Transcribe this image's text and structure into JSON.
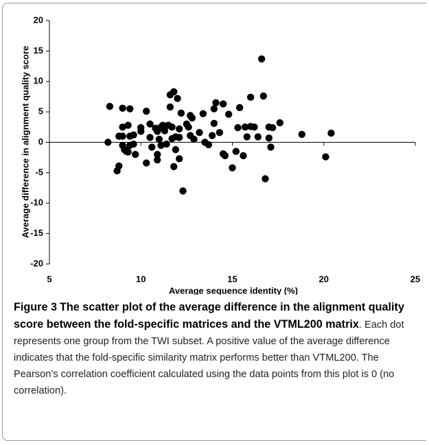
{
  "chart_data": {
    "type": "scatter",
    "xlabel": "Average sequence identity (%)",
    "ylabel": "Average difference in alignment quality score",
    "color": "#000000",
    "xlim": [
      5,
      25
    ],
    "xticks": [
      5,
      10,
      15,
      20,
      25
    ],
    "ylim": [
      -20,
      20
    ],
    "yticks": [
      -20,
      -15,
      -10,
      -5,
      0,
      5,
      10,
      15,
      20
    ],
    "x": [
      8.3,
      8.2,
      8.7,
      8.8,
      8.8,
      9.0,
      9.0,
      9.0,
      9.1,
      9.2,
      9.0,
      9.4,
      9.3,
      9.4,
      9.4,
      9.3,
      9.6,
      9.6,
      9.7,
      10.0,
      10.0,
      10.3,
      10.3,
      10.5,
      10.5,
      10.6,
      10.8,
      10.9,
      10.9,
      10.9,
      11.0,
      11.1,
      11.1,
      11.2,
      11.3,
      11.4,
      11.5,
      11.6,
      11.6,
      11.7,
      11.7,
      11.8,
      11.8,
      11.9,
      11.9,
      12.0,
      12.1,
      12.1,
      12.1,
      12.2,
      12.3,
      12.5,
      12.6,
      12.7,
      12.8,
      12.7,
      12.9,
      13.2,
      13.4,
      13.5,
      13.7,
      13.9,
      14.0,
      14.0,
      14.1,
      14.3,
      14.5,
      14.5,
      14.6,
      14.8,
      15.0,
      15.2,
      15.3,
      15.4,
      15.6,
      15.7,
      15.8,
      16.0,
      16.0,
      16.2,
      16.4,
      16.6,
      16.7,
      16.8,
      17.0,
      17.0,
      17.1,
      17.2,
      17.6,
      18.8,
      20.1,
      20.4
    ],
    "values": [
      5.9,
      0.0,
      -4.7,
      -3.9,
      1.0,
      5.6,
      2.5,
      1.0,
      -1.2,
      -1.5,
      -0.5,
      5.5,
      2.8,
      1.0,
      -0.5,
      -1.6,
      -0.3,
      1.2,
      -2.0,
      2.4,
      1.8,
      5.1,
      -3.4,
      3.0,
      0.8,
      -0.8,
      2.3,
      1.8,
      -2.0,
      -2.9,
      0.5,
      2.5,
      -0.5,
      2.8,
      1.9,
      -0.3,
      2.8,
      7.8,
      5.8,
      2.5,
      0.6,
      8.3,
      -4.0,
      0.9,
      -1.2,
      7.2,
      2.2,
      0.8,
      -2.7,
      4.8,
      -8.0,
      3.0,
      2.5,
      4.4,
      4.0,
      1.1,
      0.5,
      1.6,
      4.7,
      0.0,
      -0.4,
      1.1,
      3.1,
      5.5,
      6.5,
      1.6,
      6.3,
      -1.9,
      -2.2,
      4.6,
      -4.2,
      -1.5,
      2.4,
      5.7,
      -2.2,
      2.5,
      0.9,
      7.4,
      2.6,
      2.5,
      0.9,
      13.7,
      7.6,
      -6.0,
      2.5,
      0.7,
      -0.8,
      2.4,
      3.2,
      1.3,
      -2.4,
      1.5
    ]
  },
  "caption": {
    "label": "Figure 3",
    "title": "The scatter plot of the average difference in the alignment quality score between the fold-specific matrices and the VTML200 matrix",
    "text": ". Each dot represents one group from the TWI subset. A positive value of the average difference indicates that the fold-specific similarity matrix performs better than VTML200. The Pearson’s correlation coefficient calculated using the data points from this plot is 0 (no correlation)."
  }
}
